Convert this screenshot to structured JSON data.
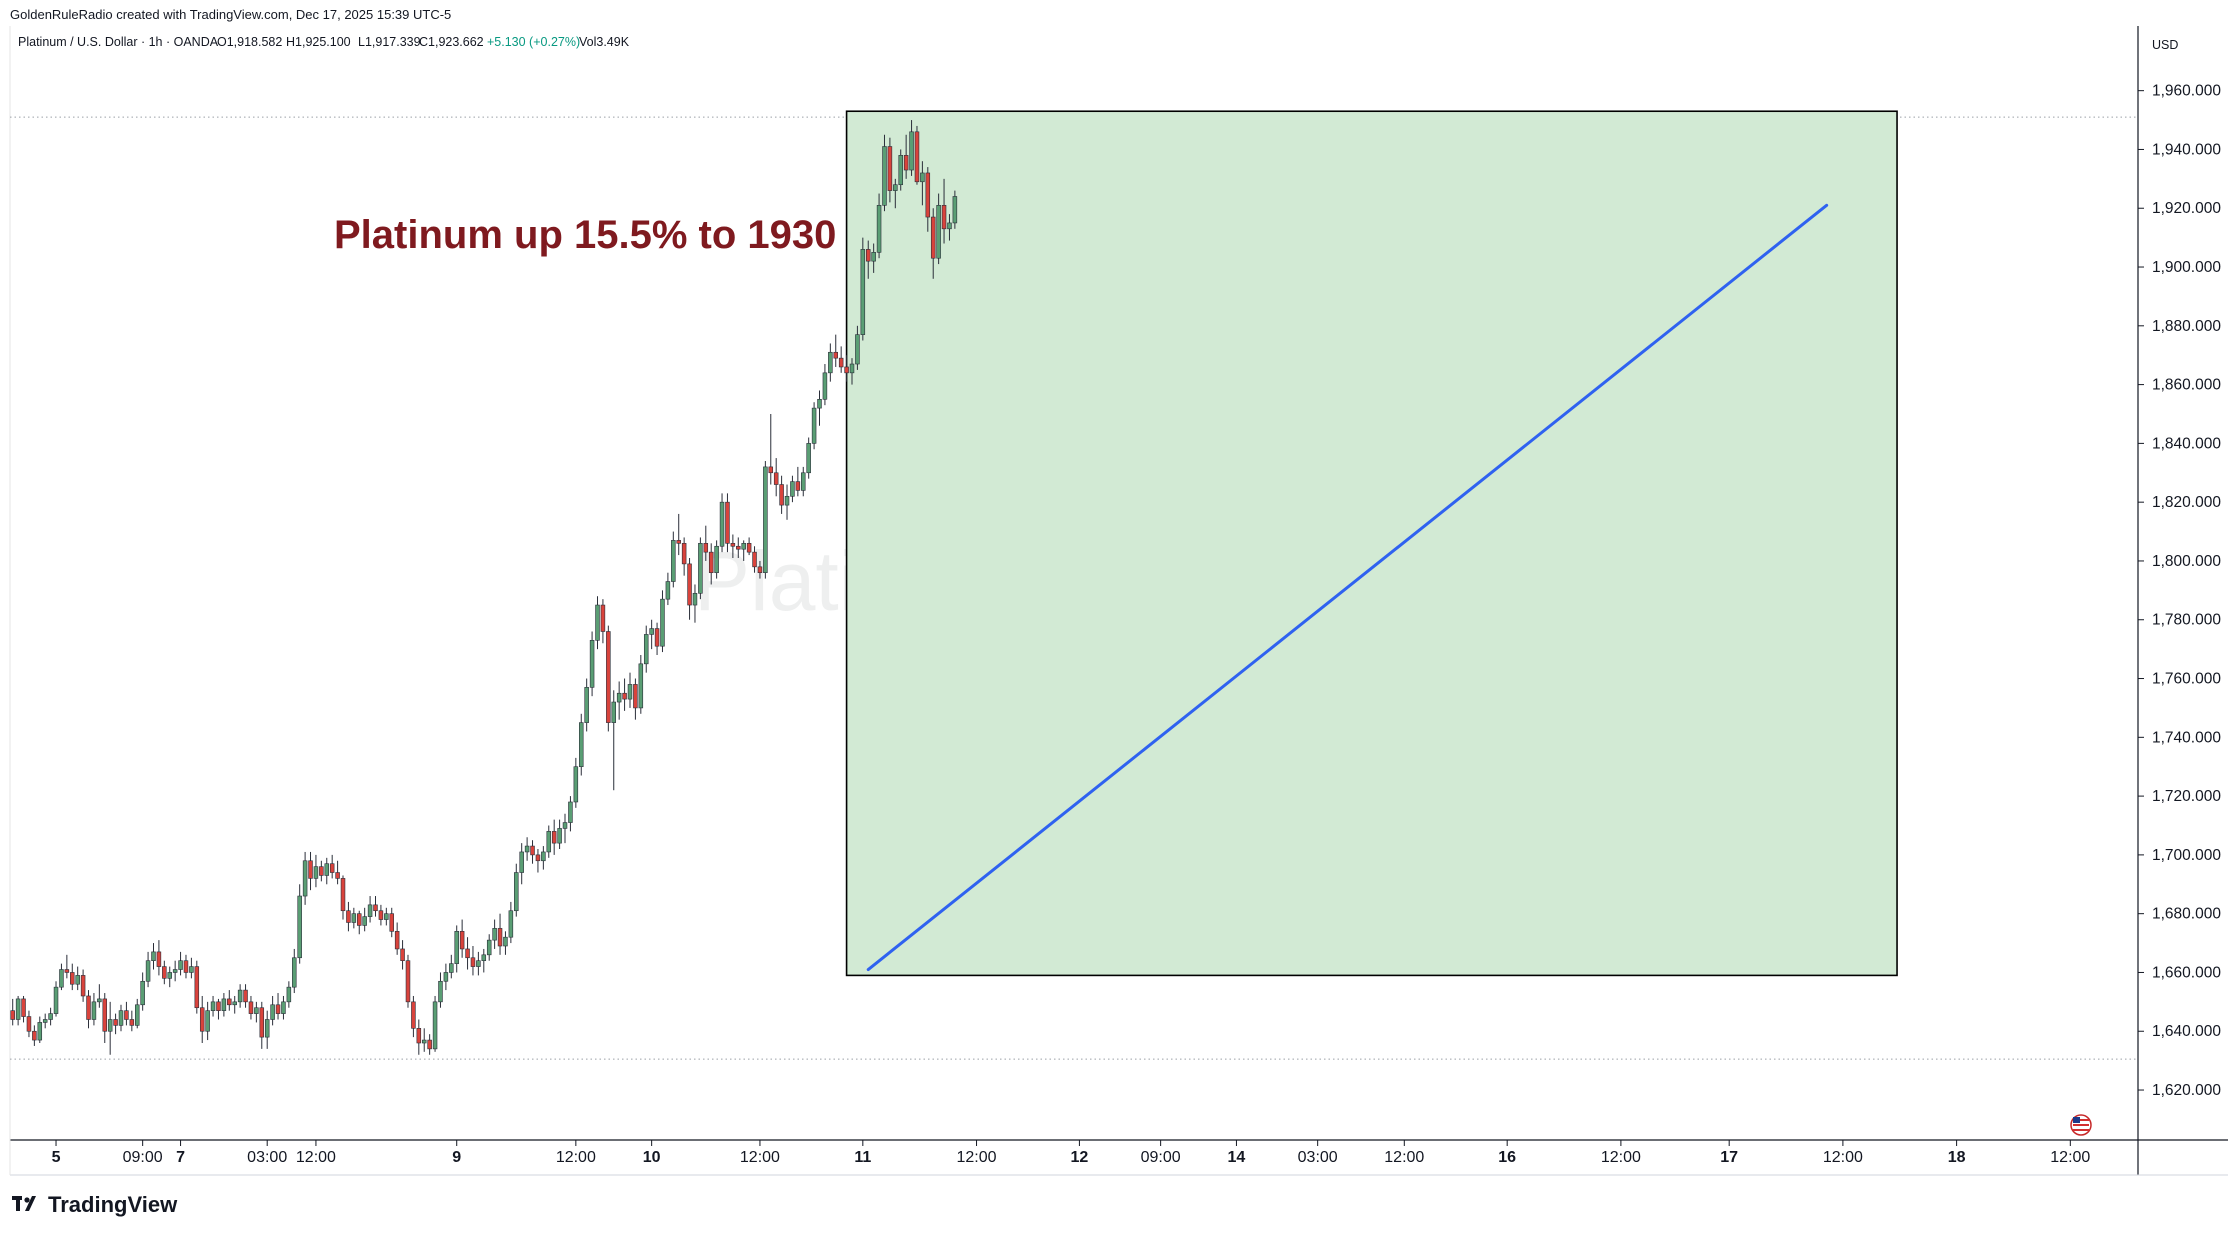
{
  "header": {
    "attribution": "GoldenRuleRadio created with TradingView.com, Dec 17, 2025 15:39 UTC-5"
  },
  "legend": {
    "symbol": "Platinum / U.S. Dollar · 1h · OANDA",
    "open": "O1,918.582",
    "high": "H1,925.100",
    "low": "L1,917.339",
    "close": "C1,923.662",
    "change": "+5.130 (+0.27%)",
    "volume": "Vol3.49K"
  },
  "price_axis": {
    "currency": "USD"
  },
  "watermark": "Platinum / U.S. Dollar",
  "annotation": {
    "headline": "Platinum up 15.5% to 1930"
  },
  "brand": {
    "name": "TradingView"
  },
  "colors": {
    "up": "#5a9e74",
    "down": "#d9433c",
    "zone_fill": "#d2ead4",
    "trend_line": "#2f62f0",
    "headline": "#7f1a1f"
  },
  "chart_data": {
    "type": "candlestick",
    "ylim": [
      1603,
      1982
    ],
    "y_ticks": [
      1620,
      1640,
      1660,
      1680,
      1700,
      1720,
      1740,
      1760,
      1780,
      1800,
      1820,
      1840,
      1860,
      1880,
      1900,
      1920,
      1940,
      1960
    ],
    "y_tick_labels": [
      "1,620.000",
      "1,640.000",
      "1,660.000",
      "1,680.000",
      "1,700.000",
      "1,720.000",
      "1,740.000",
      "1,760.000",
      "1,780.000",
      "1,800.000",
      "1,820.000",
      "1,840.000",
      "1,860.000",
      "1,880.000",
      "1,900.000",
      "1,920.000",
      "1,940.000",
      "1,960.000"
    ],
    "x_ticks": [
      {
        "label": "5",
        "bold": true,
        "bar": 8
      },
      {
        "label": "09:00",
        "bold": false,
        "bar": 24
      },
      {
        "label": "7",
        "bold": true,
        "bar": 31
      },
      {
        "label": "03:00",
        "bold": false,
        "bar": 47
      },
      {
        "label": "12:00",
        "bold": false,
        "bar": 56
      },
      {
        "label": "9",
        "bold": true,
        "bar": 82
      },
      {
        "label": "12:00",
        "bold": false,
        "bar": 104
      },
      {
        "label": "10",
        "bold": true,
        "bar": 118
      },
      {
        "label": "12:00",
        "bold": false,
        "bar": 138
      },
      {
        "label": "11",
        "bold": true,
        "bar": 157
      },
      {
        "label": "12:00",
        "bold": false,
        "bar": 178
      },
      {
        "label": "12",
        "bold": true,
        "bar": 197
      },
      {
        "label": "09:00",
        "bold": false,
        "bar": 212
      },
      {
        "label": "14",
        "bold": true,
        "bar": 226
      },
      {
        "label": "03:00",
        "bold": false,
        "bar": 241
      },
      {
        "label": "12:00",
        "bold": false,
        "bar": 257
      },
      {
        "label": "16",
        "bold": true,
        "bar": 276
      },
      {
        "label": "12:00",
        "bold": false,
        "bar": 297
      },
      {
        "label": "17",
        "bold": true,
        "bar": 317
      },
      {
        "label": "12:00",
        "bold": false,
        "bar": 338
      },
      {
        "label": "18",
        "bold": true,
        "bar": 359
      },
      {
        "label": "12:00",
        "bold": false,
        "bar": 380
      }
    ],
    "bar_count_visible": 393,
    "first_bar_index": 0,
    "dotted_levels": [
      1951,
      1630.5
    ],
    "highlight_zone": {
      "bar_start": 154,
      "bar_end": 348,
      "price_top": 1953,
      "price_bottom": 1659
    },
    "trend_line": {
      "bar_start": 158,
      "price_start": 1661,
      "bar_end": 335,
      "price_end": 1921
    },
    "ohlc": [
      [
        1647,
        1651,
        1642,
        1644
      ],
      [
        1644,
        1652,
        1642,
        1651
      ],
      [
        1651,
        1652,
        1643,
        1645
      ],
      [
        1645,
        1647,
        1638,
        1640
      ],
      [
        1640,
        1642,
        1635,
        1637
      ],
      [
        1637,
        1645,
        1636,
        1643
      ],
      [
        1643,
        1646,
        1641,
        1644
      ],
      [
        1644,
        1648,
        1642,
        1646
      ],
      [
        1646,
        1657,
        1645,
        1655
      ],
      [
        1655,
        1663,
        1654,
        1661
      ],
      [
        1661,
        1666,
        1658,
        1660
      ],
      [
        1660,
        1663,
        1654,
        1656
      ],
      [
        1656,
        1662,
        1654,
        1659
      ],
      [
        1659,
        1661,
        1650,
        1652
      ],
      [
        1652,
        1654,
        1641,
        1644
      ],
      [
        1644,
        1653,
        1642,
        1650
      ],
      [
        1650,
        1656,
        1648,
        1651
      ],
      [
        1651,
        1653,
        1636,
        1640
      ],
      [
        1640,
        1650,
        1632,
        1644
      ],
      [
        1644,
        1646,
        1639,
        1642
      ],
      [
        1642,
        1649,
        1640,
        1647
      ],
      [
        1647,
        1650,
        1642,
        1644
      ],
      [
        1644,
        1647,
        1640,
        1642
      ],
      [
        1642,
        1651,
        1641,
        1649
      ],
      [
        1649,
        1660,
        1647,
        1657
      ],
      [
        1657,
        1667,
        1655,
        1664
      ],
      [
        1664,
        1670,
        1661,
        1667
      ],
      [
        1667,
        1671,
        1659,
        1662
      ],
      [
        1662,
        1664,
        1656,
        1658
      ],
      [
        1658,
        1662,
        1655,
        1660
      ],
      [
        1660,
        1664,
        1657,
        1661
      ],
      [
        1661,
        1667,
        1659,
        1664
      ],
      [
        1664,
        1666,
        1658,
        1660
      ],
      [
        1660,
        1665,
        1658,
        1662
      ],
      [
        1662,
        1664,
        1646,
        1648
      ],
      [
        1648,
        1652,
        1636,
        1640
      ],
      [
        1640,
        1650,
        1637,
        1647
      ],
      [
        1647,
        1652,
        1645,
        1650
      ],
      [
        1650,
        1651,
        1644,
        1647
      ],
      [
        1647,
        1653,
        1645,
        1651
      ],
      [
        1651,
        1654,
        1647,
        1649
      ],
      [
        1649,
        1652,
        1646,
        1650
      ],
      [
        1650,
        1656,
        1648,
        1654
      ],
      [
        1654,
        1656,
        1648,
        1650
      ],
      [
        1650,
        1652,
        1644,
        1646
      ],
      [
        1646,
        1650,
        1643,
        1648
      ],
      [
        1648,
        1650,
        1634,
        1638
      ],
      [
        1638,
        1647,
        1634,
        1644
      ],
      [
        1644,
        1652,
        1642,
        1649
      ],
      [
        1649,
        1653,
        1644,
        1646
      ],
      [
        1646,
        1652,
        1644,
        1650
      ],
      [
        1650,
        1657,
        1648,
        1655
      ],
      [
        1655,
        1668,
        1653,
        1665
      ],
      [
        1665,
        1690,
        1663,
        1686
      ],
      [
        1686,
        1701,
        1683,
        1698
      ],
      [
        1698,
        1701,
        1688,
        1692
      ],
      [
        1692,
        1700,
        1689,
        1696
      ],
      [
        1696,
        1698,
        1691,
        1693
      ],
      [
        1693,
        1699,
        1690,
        1697
      ],
      [
        1697,
        1700,
        1692,
        1694
      ],
      [
        1694,
        1698,
        1690,
        1692
      ],
      [
        1692,
        1693,
        1678,
        1681
      ],
      [
        1681,
        1684,
        1674,
        1677
      ],
      [
        1677,
        1682,
        1675,
        1680
      ],
      [
        1680,
        1681,
        1673,
        1676
      ],
      [
        1676,
        1682,
        1674,
        1679
      ],
      [
        1679,
        1686,
        1677,
        1683
      ],
      [
        1683,
        1686,
        1679,
        1681
      ],
      [
        1681,
        1683,
        1676,
        1678
      ],
      [
        1678,
        1682,
        1676,
        1680
      ],
      [
        1680,
        1682,
        1672,
        1674
      ],
      [
        1674,
        1677,
        1666,
        1668
      ],
      [
        1668,
        1671,
        1661,
        1664
      ],
      [
        1664,
        1666,
        1648,
        1650
      ],
      [
        1650,
        1652,
        1638,
        1641
      ],
      [
        1641,
        1644,
        1632,
        1636
      ],
      [
        1636,
        1641,
        1633,
        1637
      ],
      [
        1637,
        1639,
        1632,
        1634
      ],
      [
        1634,
        1652,
        1633,
        1650
      ],
      [
        1650,
        1660,
        1648,
        1657
      ],
      [
        1657,
        1663,
        1654,
        1660
      ],
      [
        1660,
        1666,
        1658,
        1663
      ],
      [
        1663,
        1676,
        1660,
        1674
      ],
      [
        1674,
        1678,
        1665,
        1668
      ],
      [
        1668,
        1672,
        1661,
        1665
      ],
      [
        1665,
        1669,
        1659,
        1662
      ],
      [
        1662,
        1667,
        1659,
        1664
      ],
      [
        1664,
        1668,
        1660,
        1666
      ],
      [
        1666,
        1673,
        1664,
        1671
      ],
      [
        1671,
        1678,
        1668,
        1675
      ],
      [
        1675,
        1680,
        1666,
        1669
      ],
      [
        1669,
        1674,
        1666,
        1672
      ],
      [
        1672,
        1684,
        1670,
        1681
      ],
      [
        1681,
        1697,
        1679,
        1694
      ],
      [
        1694,
        1704,
        1690,
        1701
      ],
      [
        1701,
        1706,
        1698,
        1703
      ],
      [
        1703,
        1705,
        1697,
        1700
      ],
      [
        1700,
        1702,
        1694,
        1698
      ],
      [
        1698,
        1703,
        1695,
        1701
      ],
      [
        1701,
        1710,
        1699,
        1708
      ],
      [
        1708,
        1712,
        1700,
        1704
      ],
      [
        1704,
        1712,
        1702,
        1709
      ],
      [
        1709,
        1714,
        1704,
        1711
      ],
      [
        1711,
        1720,
        1708,
        1718
      ],
      [
        1718,
        1733,
        1716,
        1730
      ],
      [
        1730,
        1748,
        1727,
        1745
      ],
      [
        1745,
        1760,
        1742,
        1757
      ],
      [
        1757,
        1776,
        1754,
        1773
      ],
      [
        1773,
        1788,
        1770,
        1785
      ],
      [
        1785,
        1787,
        1772,
        1776
      ],
      [
        1776,
        1778,
        1742,
        1745
      ],
      [
        1745,
        1756,
        1722,
        1752
      ],
      [
        1752,
        1759,
        1746,
        1755
      ],
      [
        1755,
        1760,
        1749,
        1753
      ],
      [
        1753,
        1762,
        1750,
        1758
      ],
      [
        1758,
        1760,
        1746,
        1750
      ],
      [
        1750,
        1768,
        1748,
        1765
      ],
      [
        1765,
        1778,
        1762,
        1775
      ],
      [
        1775,
        1780,
        1770,
        1777
      ],
      [
        1777,
        1779,
        1768,
        1771
      ],
      [
        1771,
        1790,
        1769,
        1787
      ],
      [
        1787,
        1796,
        1785,
        1793
      ],
      [
        1793,
        1810,
        1791,
        1807
      ],
      [
        1807,
        1816,
        1802,
        1806
      ],
      [
        1806,
        1808,
        1795,
        1799
      ],
      [
        1799,
        1801,
        1780,
        1785
      ],
      [
        1785,
        1792,
        1779,
        1789
      ],
      [
        1789,
        1808,
        1787,
        1806
      ],
      [
        1806,
        1812,
        1800,
        1803
      ],
      [
        1803,
        1806,
        1792,
        1796
      ],
      [
        1796,
        1807,
        1794,
        1805
      ],
      [
        1805,
        1823,
        1803,
        1820
      ],
      [
        1820,
        1823,
        1803,
        1806
      ],
      [
        1806,
        1809,
        1801,
        1805
      ],
      [
        1805,
        1808,
        1801,
        1804
      ],
      [
        1804,
        1807,
        1800,
        1806
      ],
      [
        1806,
        1808,
        1802,
        1803
      ],
      [
        1803,
        1805,
        1796,
        1798
      ],
      [
        1798,
        1800,
        1794,
        1796
      ],
      [
        1796,
        1834,
        1794,
        1832
      ],
      [
        1832,
        1850,
        1826,
        1830
      ],
      [
        1830,
        1835,
        1822,
        1826
      ],
      [
        1826,
        1829,
        1816,
        1819
      ],
      [
        1819,
        1826,
        1814,
        1822
      ],
      [
        1822,
        1829,
        1820,
        1827
      ],
      [
        1827,
        1832,
        1822,
        1824
      ],
      [
        1824,
        1832,
        1822,
        1830
      ],
      [
        1830,
        1842,
        1828,
        1840
      ],
      [
        1840,
        1854,
        1838,
        1852
      ],
      [
        1852,
        1858,
        1846,
        1855
      ],
      [
        1855,
        1867,
        1853,
        1864
      ],
      [
        1864,
        1874,
        1861,
        1871
      ],
      [
        1871,
        1877,
        1866,
        1869
      ],
      [
        1869,
        1873,
        1864,
        1866
      ],
      [
        1866,
        1870,
        1861,
        1864
      ],
      [
        1864,
        1869,
        1860,
        1867
      ],
      [
        1867,
        1880,
        1865,
        1877
      ],
      [
        1877,
        1910,
        1875,
        1906
      ],
      [
        1906,
        1909,
        1896,
        1902
      ],
      [
        1902,
        1908,
        1898,
        1905
      ],
      [
        1905,
        1925,
        1903,
        1921
      ],
      [
        1921,
        1945,
        1919,
        1941
      ],
      [
        1941,
        1944,
        1922,
        1926
      ],
      [
        1926,
        1930,
        1920,
        1928
      ],
      [
        1928,
        1940,
        1926,
        1938
      ],
      [
        1938,
        1945,
        1930,
        1933
      ],
      [
        1933,
        1950,
        1931,
        1946
      ],
      [
        1946,
        1948,
        1928,
        1929
      ],
      [
        1929,
        1936,
        1921,
        1932
      ],
      [
        1932,
        1934,
        1912,
        1917
      ],
      [
        1917,
        1920,
        1896,
        1903
      ],
      [
        1903,
        1925,
        1901,
        1921
      ],
      [
        1921,
        1930,
        1908,
        1913
      ],
      [
        1913,
        1918,
        1909,
        1915
      ],
      [
        1915,
        1926,
        1913,
        1924
      ]
    ]
  }
}
